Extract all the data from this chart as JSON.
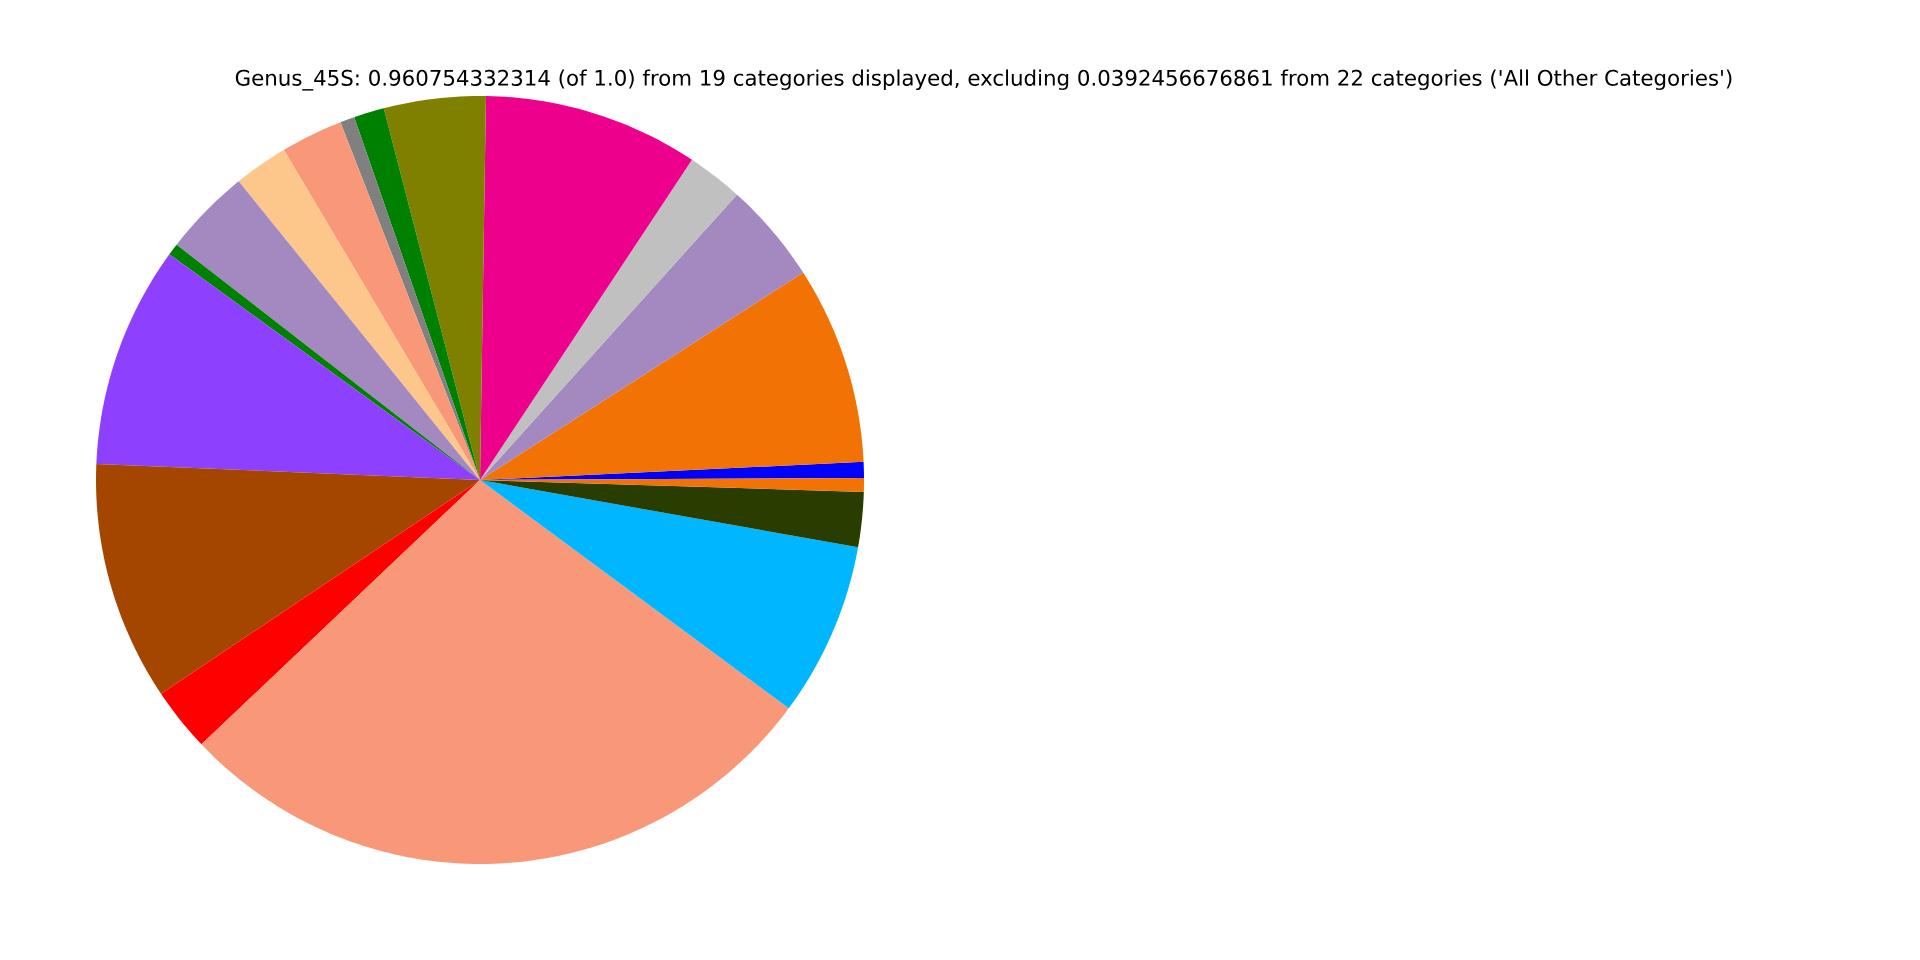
{
  "chart_data": {
    "type": "pie",
    "title": "Genus_45S: 0.960754332314 (of 1.0) from 19 categories displayed, excluding 0.0392456676861 from 22 categories ('All Other Categories')",
    "categories": [
      null,
      null,
      null,
      null,
      null,
      null,
      null,
      null,
      null,
      null,
      null,
      null,
      null,
      null,
      null,
      null,
      null,
      null,
      null
    ],
    "values": [
      0.67,
      8.33,
      4.25,
      2.36,
      9.06,
      4.28,
      1.28,
      0.61,
      2.61,
      2.28,
      3.69,
      0.5,
      9.33,
      10.06,
      2.69,
      27.78,
      7.33,
      2.31,
      0.58
    ],
    "colors": [
      "#0000ff",
      "#f27304",
      "#a389c0",
      "#c0c0c0",
      "#ec008c",
      "#808000",
      "#008000",
      "#808080",
      "#f99879",
      "#fdc68a",
      "#a389c0",
      "#008000",
      "#8e40ff",
      "#a54600",
      "#ff0000",
      "#f99879",
      "#00b6ff",
      "#2a3d00",
      "#f27304"
    ]
  }
}
